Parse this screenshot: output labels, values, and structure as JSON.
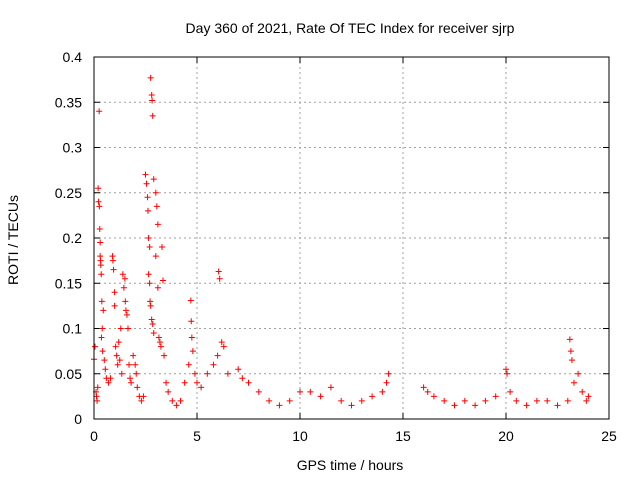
{
  "chart_data": {
    "type": "scatter",
    "title": "Day 360 of 2021, Rate Of TEC Index for receiver sjrp",
    "xlabel": "GPS time / hours",
    "ylabel": "ROTI / TECUs",
    "xlim": [
      0,
      25
    ],
    "ylim": [
      0,
      0.4
    ],
    "x_ticks": [
      0,
      5,
      10,
      15,
      20,
      25
    ],
    "x_tick_labels": [
      "0",
      "5",
      "10",
      "15",
      "20",
      "25"
    ],
    "y_ticks": [
      0,
      0.05,
      0.1,
      0.15,
      0.2,
      0.25,
      0.3,
      0.35,
      0.4
    ],
    "y_tick_labels": [
      "0",
      "0.05",
      "0.1",
      "0.15",
      "0.2",
      "0.25",
      "0.3",
      "0.35",
      "0.4"
    ],
    "grid": true,
    "marker": "+",
    "color": "#ff0000",
    "series": [
      {
        "name": "ROTI",
        "points": [
          [
            0.0,
            0.066
          ],
          [
            0.05,
            0.08
          ],
          [
            0.1,
            0.03
          ],
          [
            0.12,
            0.025
          ],
          [
            0.15,
            0.02
          ],
          [
            0.18,
            0.035
          ],
          [
            0.2,
            0.255
          ],
          [
            0.22,
            0.24
          ],
          [
            0.25,
            0.34
          ],
          [
            0.26,
            0.235
          ],
          [
            0.28,
            0.21
          ],
          [
            0.3,
            0.195
          ],
          [
            0.3,
            0.18
          ],
          [
            0.32,
            0.175
          ],
          [
            0.33,
            0.17
          ],
          [
            0.35,
            0.16
          ],
          [
            0.36,
            0.09
          ],
          [
            0.38,
            0.13
          ],
          [
            0.4,
            0.1
          ],
          [
            0.42,
            0.075
          ],
          [
            0.45,
            0.12
          ],
          [
            0.5,
            0.065
          ],
          [
            0.55,
            0.055
          ],
          [
            0.6,
            0.045
          ],
          [
            0.7,
            0.04
          ],
          [
            0.8,
            0.045
          ],
          [
            0.9,
            0.18
          ],
          [
            0.92,
            0.175
          ],
          [
            0.95,
            0.165
          ],
          [
            1.0,
            0.14
          ],
          [
            1.0,
            0.125
          ],
          [
            1.05,
            0.08
          ],
          [
            1.1,
            0.07
          ],
          [
            1.15,
            0.06
          ],
          [
            1.2,
            0.085
          ],
          [
            1.25,
            0.065
          ],
          [
            1.3,
            0.1
          ],
          [
            1.35,
            0.05
          ],
          [
            1.4,
            0.16
          ],
          [
            1.45,
            0.145
          ],
          [
            1.5,
            0.155
          ],
          [
            1.52,
            0.13
          ],
          [
            1.55,
            0.12
          ],
          [
            1.6,
            0.115
          ],
          [
            1.65,
            0.1
          ],
          [
            1.7,
            0.06
          ],
          [
            1.75,
            0.045
          ],
          [
            1.8,
            0.04
          ],
          [
            1.9,
            0.07
          ],
          [
            2.0,
            0.06
          ],
          [
            2.05,
            0.05
          ],
          [
            2.1,
            0.035
          ],
          [
            2.2,
            0.025
          ],
          [
            2.3,
            0.02
          ],
          [
            2.4,
            0.025
          ],
          [
            2.5,
            0.27
          ],
          [
            2.55,
            0.26
          ],
          [
            2.6,
            0.245
          ],
          [
            2.62,
            0.23
          ],
          [
            2.65,
            0.2
          ],
          [
            2.7,
            0.19
          ],
          [
            2.75,
            0.377
          ],
          [
            2.8,
            0.358
          ],
          [
            2.82,
            0.352
          ],
          [
            2.85,
            0.335
          ],
          [
            2.9,
            0.265
          ],
          [
            2.65,
            0.16
          ],
          [
            2.7,
            0.15
          ],
          [
            2.72,
            0.13
          ],
          [
            2.75,
            0.125
          ],
          [
            2.8,
            0.11
          ],
          [
            2.85,
            0.105
          ],
          [
            2.9,
            0.095
          ],
          [
            3.0,
            0.25
          ],
          [
            3.05,
            0.235
          ],
          [
            3.1,
            0.215
          ],
          [
            3.0,
            0.18
          ],
          [
            3.1,
            0.145
          ],
          [
            3.15,
            0.09
          ],
          [
            3.2,
            0.085
          ],
          [
            3.25,
            0.08
          ],
          [
            3.3,
            0.19
          ],
          [
            3.35,
            0.153
          ],
          [
            3.4,
            0.07
          ],
          [
            3.5,
            0.04
          ],
          [
            3.6,
            0.03
          ],
          [
            3.8,
            0.02
          ],
          [
            4.0,
            0.015
          ],
          [
            4.2,
            0.02
          ],
          [
            4.4,
            0.04
          ],
          [
            4.6,
            0.06
          ],
          [
            4.7,
            0.131
          ],
          [
            4.72,
            0.108
          ],
          [
            4.75,
            0.09
          ],
          [
            4.8,
            0.075
          ],
          [
            4.9,
            0.05
          ],
          [
            5.0,
            0.04
          ],
          [
            5.2,
            0.035
          ],
          [
            5.5,
            0.05
          ],
          [
            5.8,
            0.06
          ],
          [
            6.0,
            0.07
          ],
          [
            6.05,
            0.163
          ],
          [
            6.1,
            0.155
          ],
          [
            6.2,
            0.085
          ],
          [
            6.3,
            0.08
          ],
          [
            6.5,
            0.05
          ],
          [
            7.0,
            0.055
          ],
          [
            7.2,
            0.045
          ],
          [
            7.5,
            0.04
          ],
          [
            8.0,
            0.03
          ],
          [
            8.5,
            0.02
          ],
          [
            9.0,
            0.015
          ],
          [
            9.5,
            0.02
          ],
          [
            10.0,
            0.03
          ],
          [
            10.5,
            0.03
          ],
          [
            11.0,
            0.025
          ],
          [
            11.5,
            0.035
          ],
          [
            12.0,
            0.02
          ],
          [
            12.5,
            0.015
          ],
          [
            13.0,
            0.02
          ],
          [
            13.5,
            0.025
          ],
          [
            14.0,
            0.03
          ],
          [
            14.2,
            0.04
          ],
          [
            14.3,
            0.05
          ],
          [
            16.0,
            0.035
          ],
          [
            16.2,
            0.03
          ],
          [
            16.5,
            0.025
          ],
          [
            17.0,
            0.02
          ],
          [
            17.5,
            0.015
          ],
          [
            18.0,
            0.02
          ],
          [
            18.5,
            0.015
          ],
          [
            19.0,
            0.02
          ],
          [
            19.5,
            0.025
          ],
          [
            20.0,
            0.055
          ],
          [
            20.05,
            0.05
          ],
          [
            20.2,
            0.03
          ],
          [
            20.5,
            0.02
          ],
          [
            21.0,
            0.015
          ],
          [
            21.5,
            0.02
          ],
          [
            22.0,
            0.02
          ],
          [
            22.5,
            0.015
          ],
          [
            23.0,
            0.02
          ],
          [
            23.1,
            0.088
          ],
          [
            23.15,
            0.075
          ],
          [
            23.2,
            0.065
          ],
          [
            23.3,
            0.04
          ],
          [
            23.5,
            0.05
          ],
          [
            23.7,
            0.03
          ],
          [
            23.9,
            0.02
          ],
          [
            24.0,
            0.025
          ]
        ]
      }
    ]
  }
}
